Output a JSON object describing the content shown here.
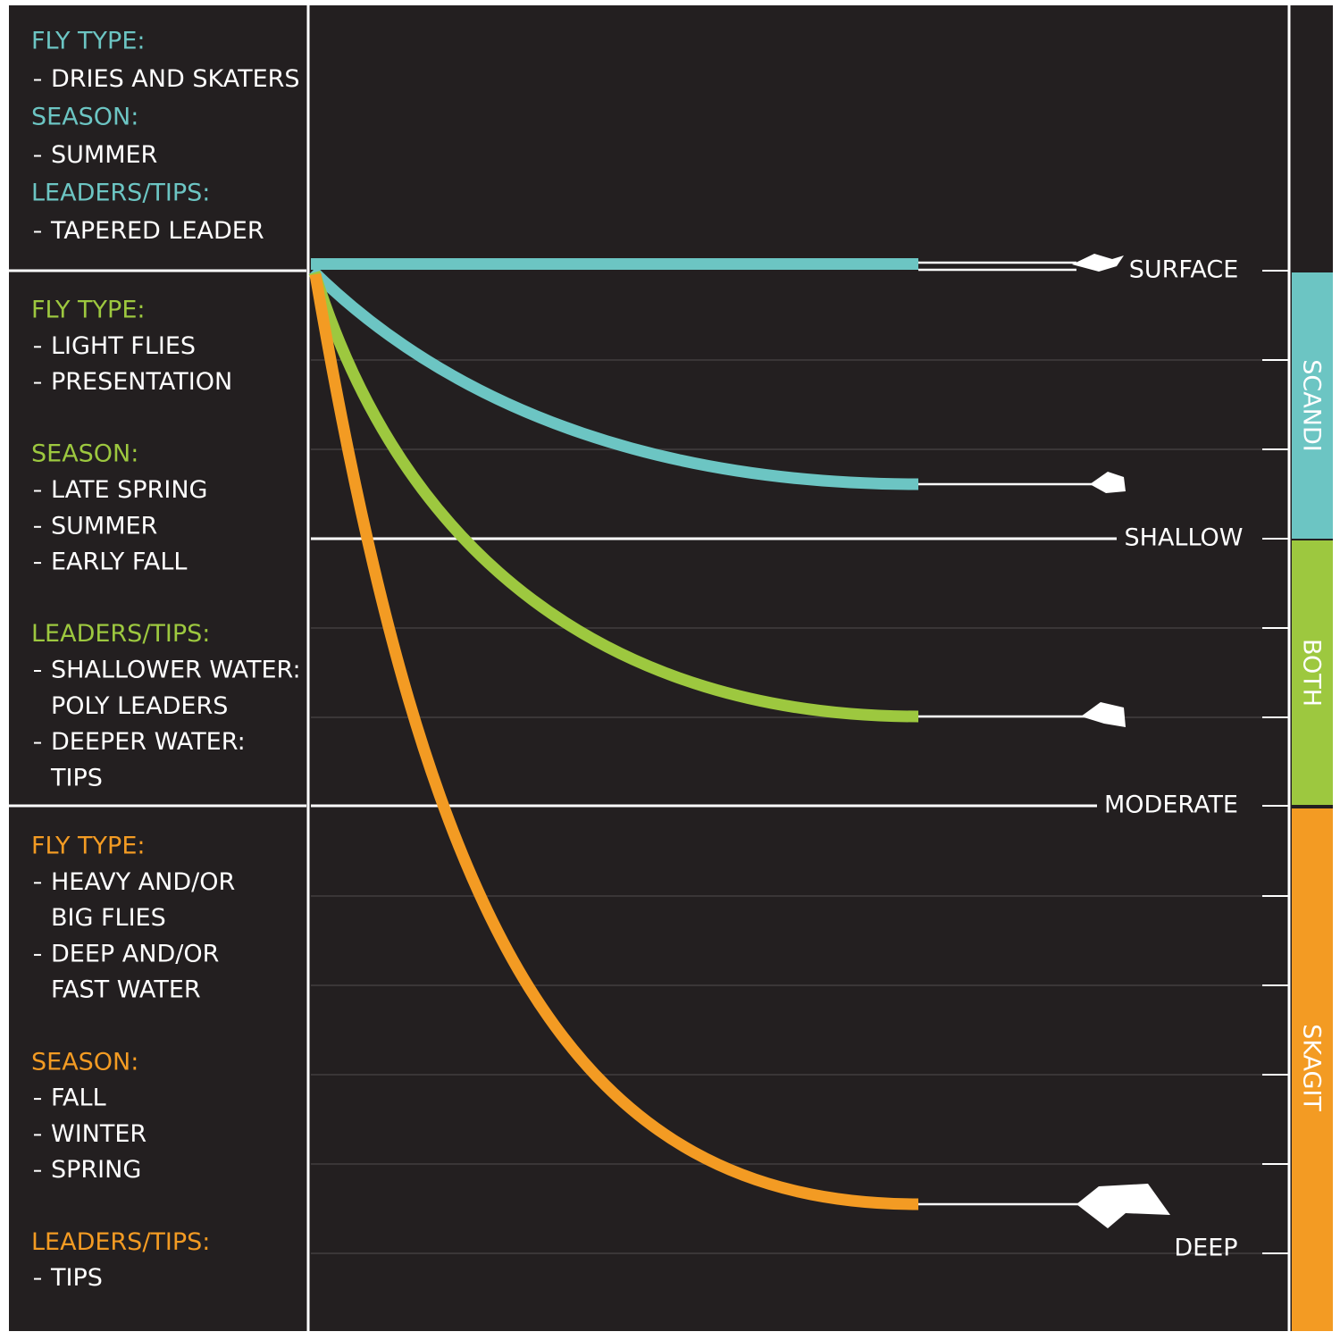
{
  "sections": [
    {
      "groups": [
        {
          "heading": "FLY TYPE:",
          "items": [
            [
              "DRIES AND SKATERS"
            ]
          ]
        },
        {
          "heading": "SEASON:",
          "items": [
            [
              "SUMMER"
            ]
          ]
        },
        {
          "heading": "LEADERS/TIPS:",
          "items": [
            [
              "TAPERED LEADER"
            ]
          ]
        }
      ]
    },
    {
      "groups": [
        {
          "heading": "FLY TYPE:",
          "items": [
            [
              "LIGHT FLIES"
            ],
            [
              "PRESENTATION"
            ]
          ]
        },
        {
          "heading": "SEASON:",
          "items": [
            [
              "LATE SPRING"
            ],
            [
              "SUMMER"
            ],
            [
              "EARLY FALL"
            ]
          ]
        },
        {
          "heading": "LEADERS/TIPS:",
          "items": [
            [
              "SHALLOWER WATER:",
              "POLY LEADERS"
            ],
            [
              "DEEPER WATER:",
              "TIPS"
            ]
          ]
        }
      ]
    },
    {
      "groups": [
        {
          "heading": "FLY TYPE:",
          "items": [
            [
              "HEAVY AND/OR",
              "BIG FLIES"
            ],
            [
              "DEEP AND/OR",
              "FAST WATER"
            ]
          ]
        },
        {
          "heading": "SEASON:",
          "items": [
            [
              "FALL"
            ],
            [
              "WINTER"
            ],
            [
              "SPRING"
            ]
          ]
        },
        {
          "heading": "LEADERS/TIPS:",
          "items": [
            [
              "TIPS"
            ]
          ]
        }
      ]
    }
  ],
  "depth_labels": [
    "SURFACE",
    "SHALLOW",
    "MODERATE",
    "DEEP"
  ],
  "line_types": [
    "SCANDI",
    "BOTH",
    "SKAGIT"
  ]
}
